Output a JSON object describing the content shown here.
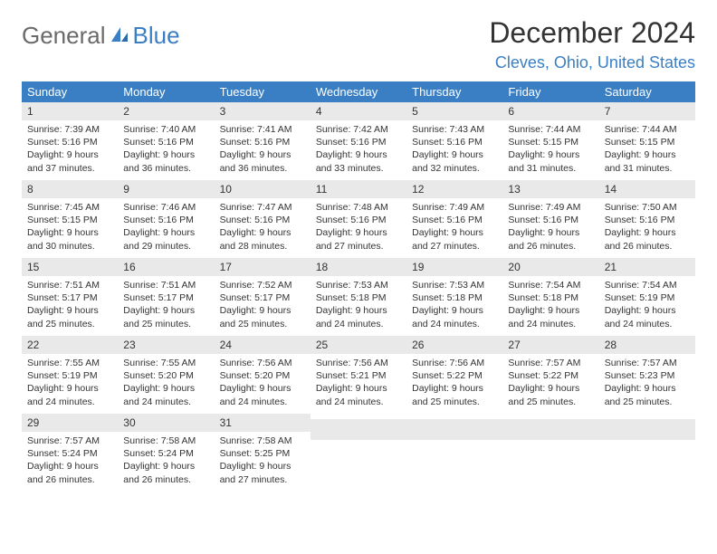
{
  "logo": {
    "text1": "General",
    "text2": "Blue"
  },
  "title": "December 2024",
  "location": "Cleves, Ohio, United States",
  "colors": {
    "header_blue": "#3a7fc4",
    "light_gray": "#e9e9e9",
    "text": "#333333",
    "logo_gray": "#6a6a6a"
  },
  "weekdays": [
    "Sunday",
    "Monday",
    "Tuesday",
    "Wednesday",
    "Thursday",
    "Friday",
    "Saturday"
  ],
  "weeks": [
    [
      {
        "n": "1",
        "sr": "Sunrise: 7:39 AM",
        "ss": "Sunset: 5:16 PM",
        "dl": "Daylight: 9 hours and 37 minutes."
      },
      {
        "n": "2",
        "sr": "Sunrise: 7:40 AM",
        "ss": "Sunset: 5:16 PM",
        "dl": "Daylight: 9 hours and 36 minutes."
      },
      {
        "n": "3",
        "sr": "Sunrise: 7:41 AM",
        "ss": "Sunset: 5:16 PM",
        "dl": "Daylight: 9 hours and 36 minutes."
      },
      {
        "n": "4",
        "sr": "Sunrise: 7:42 AM",
        "ss": "Sunset: 5:16 PM",
        "dl": "Daylight: 9 hours and 33 minutes."
      },
      {
        "n": "5",
        "sr": "Sunrise: 7:43 AM",
        "ss": "Sunset: 5:16 PM",
        "dl": "Daylight: 9 hours and 32 minutes."
      },
      {
        "n": "6",
        "sr": "Sunrise: 7:44 AM",
        "ss": "Sunset: 5:15 PM",
        "dl": "Daylight: 9 hours and 31 minutes."
      },
      {
        "n": "7",
        "sr": "Sunrise: 7:44 AM",
        "ss": "Sunset: 5:15 PM",
        "dl": "Daylight: 9 hours and 31 minutes."
      }
    ],
    [
      {
        "n": "8",
        "sr": "Sunrise: 7:45 AM",
        "ss": "Sunset: 5:15 PM",
        "dl": "Daylight: 9 hours and 30 minutes."
      },
      {
        "n": "9",
        "sr": "Sunrise: 7:46 AM",
        "ss": "Sunset: 5:16 PM",
        "dl": "Daylight: 9 hours and 29 minutes."
      },
      {
        "n": "10",
        "sr": "Sunrise: 7:47 AM",
        "ss": "Sunset: 5:16 PM",
        "dl": "Daylight: 9 hours and 28 minutes."
      },
      {
        "n": "11",
        "sr": "Sunrise: 7:48 AM",
        "ss": "Sunset: 5:16 PM",
        "dl": "Daylight: 9 hours and 27 minutes."
      },
      {
        "n": "12",
        "sr": "Sunrise: 7:49 AM",
        "ss": "Sunset: 5:16 PM",
        "dl": "Daylight: 9 hours and 27 minutes."
      },
      {
        "n": "13",
        "sr": "Sunrise: 7:49 AM",
        "ss": "Sunset: 5:16 PM",
        "dl": "Daylight: 9 hours and 26 minutes."
      },
      {
        "n": "14",
        "sr": "Sunrise: 7:50 AM",
        "ss": "Sunset: 5:16 PM",
        "dl": "Daylight: 9 hours and 26 minutes."
      }
    ],
    [
      {
        "n": "15",
        "sr": "Sunrise: 7:51 AM",
        "ss": "Sunset: 5:17 PM",
        "dl": "Daylight: 9 hours and 25 minutes."
      },
      {
        "n": "16",
        "sr": "Sunrise: 7:51 AM",
        "ss": "Sunset: 5:17 PM",
        "dl": "Daylight: 9 hours and 25 minutes."
      },
      {
        "n": "17",
        "sr": "Sunrise: 7:52 AM",
        "ss": "Sunset: 5:17 PM",
        "dl": "Daylight: 9 hours and 25 minutes."
      },
      {
        "n": "18",
        "sr": "Sunrise: 7:53 AM",
        "ss": "Sunset: 5:18 PM",
        "dl": "Daylight: 9 hours and 24 minutes."
      },
      {
        "n": "19",
        "sr": "Sunrise: 7:53 AM",
        "ss": "Sunset: 5:18 PM",
        "dl": "Daylight: 9 hours and 24 minutes."
      },
      {
        "n": "20",
        "sr": "Sunrise: 7:54 AM",
        "ss": "Sunset: 5:18 PM",
        "dl": "Daylight: 9 hours and 24 minutes."
      },
      {
        "n": "21",
        "sr": "Sunrise: 7:54 AM",
        "ss": "Sunset: 5:19 PM",
        "dl": "Daylight: 9 hours and 24 minutes."
      }
    ],
    [
      {
        "n": "22",
        "sr": "Sunrise: 7:55 AM",
        "ss": "Sunset: 5:19 PM",
        "dl": "Daylight: 9 hours and 24 minutes."
      },
      {
        "n": "23",
        "sr": "Sunrise: 7:55 AM",
        "ss": "Sunset: 5:20 PM",
        "dl": "Daylight: 9 hours and 24 minutes."
      },
      {
        "n": "24",
        "sr": "Sunrise: 7:56 AM",
        "ss": "Sunset: 5:20 PM",
        "dl": "Daylight: 9 hours and 24 minutes."
      },
      {
        "n": "25",
        "sr": "Sunrise: 7:56 AM",
        "ss": "Sunset: 5:21 PM",
        "dl": "Daylight: 9 hours and 24 minutes."
      },
      {
        "n": "26",
        "sr": "Sunrise: 7:56 AM",
        "ss": "Sunset: 5:22 PM",
        "dl": "Daylight: 9 hours and 25 minutes."
      },
      {
        "n": "27",
        "sr": "Sunrise: 7:57 AM",
        "ss": "Sunset: 5:22 PM",
        "dl": "Daylight: 9 hours and 25 minutes."
      },
      {
        "n": "28",
        "sr": "Sunrise: 7:57 AM",
        "ss": "Sunset: 5:23 PM",
        "dl": "Daylight: 9 hours and 25 minutes."
      }
    ],
    [
      {
        "n": "29",
        "sr": "Sunrise: 7:57 AM",
        "ss": "Sunset: 5:24 PM",
        "dl": "Daylight: 9 hours and 26 minutes."
      },
      {
        "n": "30",
        "sr": "Sunrise: 7:58 AM",
        "ss": "Sunset: 5:24 PM",
        "dl": "Daylight: 9 hours and 26 minutes."
      },
      {
        "n": "31",
        "sr": "Sunrise: 7:58 AM",
        "ss": "Sunset: 5:25 PM",
        "dl": "Daylight: 9 hours and 27 minutes."
      },
      null,
      null,
      null,
      null
    ]
  ]
}
